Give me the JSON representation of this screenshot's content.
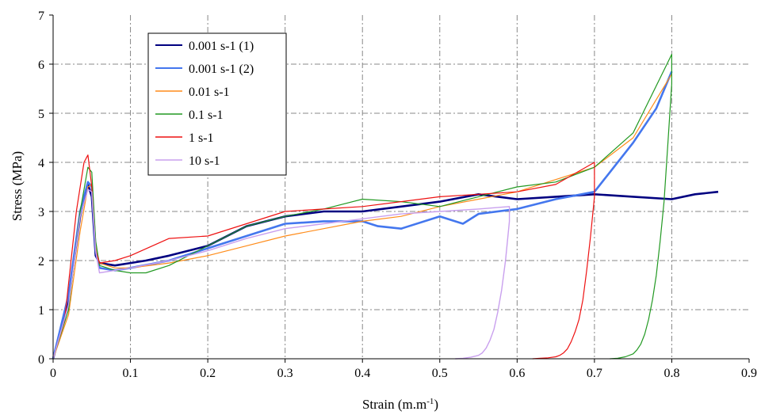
{
  "chart_data": {
    "type": "line",
    "title": "",
    "xlabel": "Strain (m.m",
    "xlabel_sup": "-1",
    "xlabel_end": ")",
    "ylabel": "Stress (MPa)",
    "xlim": [
      0,
      0.9
    ],
    "ylim": [
      0,
      7
    ],
    "xticks": [
      "0",
      "0.1",
      "0.2",
      "0.3",
      "0.4",
      "0.5",
      "0.6",
      "0.7",
      "0.8",
      "0.9"
    ],
    "yticks": [
      "0",
      "1",
      "2",
      "3",
      "4",
      "5",
      "6",
      "7"
    ],
    "grid": true,
    "legend_position": "top-left",
    "series": [
      {
        "name": "0.001 s-1 (1)",
        "color": "#000080",
        "width": 2.6,
        "x": [
          0,
          0.02,
          0.035,
          0.045,
          0.05,
          0.055,
          0.06,
          0.08,
          0.1,
          0.12,
          0.15,
          0.2,
          0.25,
          0.3,
          0.35,
          0.4,
          0.45,
          0.5,
          0.55,
          0.6,
          0.65,
          0.7,
          0.75,
          0.8,
          0.83,
          0.86
        ],
        "y": [
          0,
          1.2,
          2.9,
          3.55,
          3.3,
          2.1,
          1.95,
          1.9,
          1.95,
          2.0,
          2.1,
          2.3,
          2.7,
          2.9,
          3.0,
          3.0,
          3.1,
          3.2,
          3.35,
          3.25,
          3.3,
          3.35,
          3.3,
          3.25,
          3.35,
          3.4
        ]
      },
      {
        "name": "0.001 s-1 (2)",
        "color": "#4477ee",
        "width": 2.6,
        "x": [
          0,
          0.02,
          0.035,
          0.045,
          0.05,
          0.055,
          0.06,
          0.08,
          0.1,
          0.15,
          0.2,
          0.25,
          0.3,
          0.35,
          0.4,
          0.42,
          0.45,
          0.5,
          0.53,
          0.55,
          0.6,
          0.65,
          0.7,
          0.72,
          0.75,
          0.78,
          0.8
        ],
        "y": [
          0,
          1.3,
          3.0,
          3.6,
          3.5,
          2.2,
          1.85,
          1.8,
          1.85,
          2.0,
          2.25,
          2.5,
          2.75,
          2.8,
          2.8,
          2.7,
          2.65,
          2.9,
          2.75,
          2.95,
          3.05,
          3.25,
          3.4,
          3.8,
          4.4,
          5.1,
          5.85
        ]
      },
      {
        "name": "0.01 s-1",
        "color": "#ff8c1a",
        "width": 1.2,
        "x": [
          0,
          0.02,
          0.035,
          0.045,
          0.05,
          0.055,
          0.06,
          0.08,
          0.1,
          0.15,
          0.2,
          0.25,
          0.3,
          0.35,
          0.4,
          0.45,
          0.5,
          0.55,
          0.6,
          0.65,
          0.7,
          0.75,
          0.8
        ],
        "y": [
          0,
          0.9,
          2.6,
          3.5,
          3.55,
          2.3,
          1.95,
          1.85,
          1.85,
          1.95,
          2.1,
          2.3,
          2.5,
          2.65,
          2.8,
          2.9,
          3.1,
          3.25,
          3.4,
          3.65,
          3.9,
          4.5,
          5.8
        ]
      },
      {
        "name": "0.1 s-1",
        "color": "#229922",
        "width": 1.2,
        "x": [
          0,
          0.02,
          0.035,
          0.045,
          0.05,
          0.055,
          0.06,
          0.08,
          0.1,
          0.12,
          0.15,
          0.2,
          0.25,
          0.3,
          0.35,
          0.4,
          0.45,
          0.5,
          0.55,
          0.6,
          0.65,
          0.7,
          0.75,
          0.8,
          0.8,
          0.795,
          0.79,
          0.785,
          0.78,
          0.775,
          0.77,
          0.765,
          0.76,
          0.755,
          0.75,
          0.74,
          0.73,
          0.72
        ],
        "y": [
          0,
          1.0,
          3.0,
          3.9,
          3.8,
          2.4,
          1.9,
          1.8,
          1.75,
          1.75,
          1.9,
          2.3,
          2.7,
          2.9,
          3.05,
          3.25,
          3.2,
          3.1,
          3.3,
          3.5,
          3.6,
          3.9,
          4.6,
          6.2,
          5.6,
          4.4,
          3.2,
          2.4,
          1.7,
          1.2,
          0.8,
          0.5,
          0.3,
          0.18,
          0.1,
          0.04,
          0.01,
          0
        ]
      },
      {
        "name": "1 s-1",
        "color": "#ee1111",
        "width": 1.2,
        "x": [
          0,
          0.015,
          0.03,
          0.04,
          0.045,
          0.05,
          0.055,
          0.06,
          0.08,
          0.1,
          0.15,
          0.2,
          0.25,
          0.3,
          0.35,
          0.4,
          0.45,
          0.5,
          0.55,
          0.6,
          0.65,
          0.7,
          0.7,
          0.695,
          0.69,
          0.685,
          0.68,
          0.675,
          0.67,
          0.665,
          0.66,
          0.655,
          0.65,
          0.64,
          0.63,
          0.62
        ],
        "y": [
          0,
          0.8,
          3.0,
          4.0,
          4.15,
          3.5,
          2.2,
          1.95,
          2.0,
          2.1,
          2.45,
          2.5,
          2.75,
          3.0,
          3.05,
          3.1,
          3.2,
          3.3,
          3.35,
          3.4,
          3.55,
          4.0,
          3.3,
          2.5,
          1.8,
          1.2,
          0.8,
          0.55,
          0.35,
          0.2,
          0.12,
          0.07,
          0.04,
          0.02,
          0.01,
          0
        ]
      },
      {
        "name": "10 s-1",
        "color": "#c9a0ee",
        "width": 1.4,
        "x": [
          0,
          0.02,
          0.035,
          0.045,
          0.05,
          0.055,
          0.06,
          0.08,
          0.1,
          0.15,
          0.2,
          0.25,
          0.3,
          0.35,
          0.4,
          0.45,
          0.5,
          0.55,
          0.59,
          0.59,
          0.585,
          0.58,
          0.575,
          0.57,
          0.565,
          0.56,
          0.555,
          0.55,
          0.54,
          0.53,
          0.52
        ],
        "y": [
          0,
          1.1,
          2.9,
          3.45,
          3.4,
          2.2,
          1.75,
          1.8,
          1.85,
          2.0,
          2.2,
          2.45,
          2.65,
          2.75,
          2.85,
          2.95,
          3.0,
          3.05,
          3.1,
          2.8,
          2.0,
          1.4,
          0.95,
          0.6,
          0.38,
          0.22,
          0.12,
          0.07,
          0.03,
          0.01,
          0
        ]
      }
    ]
  }
}
